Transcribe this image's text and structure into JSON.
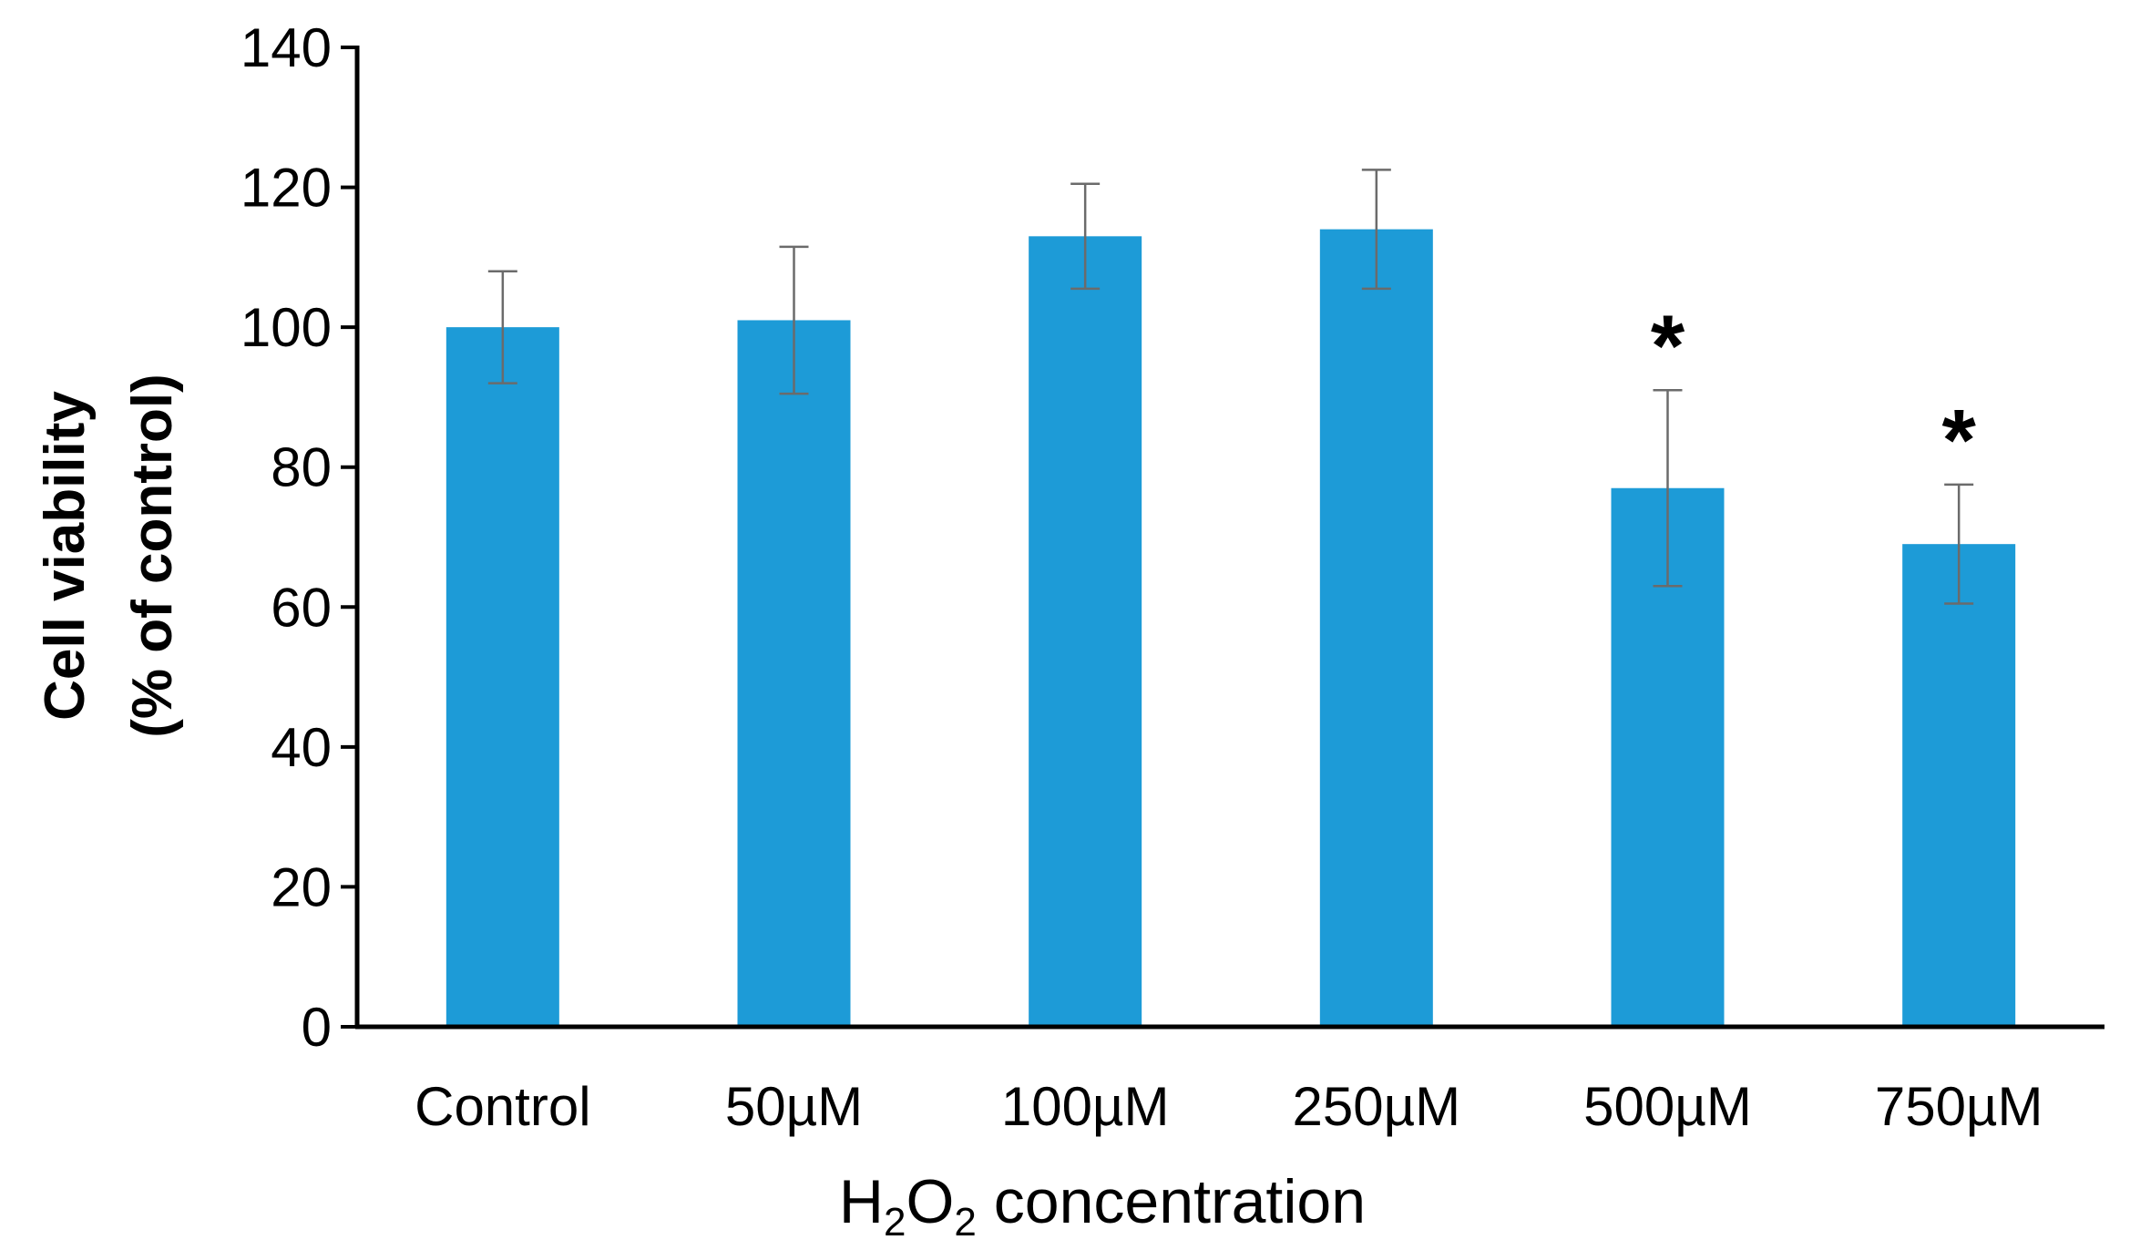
{
  "chart_data": {
    "type": "bar",
    "title": "",
    "categories": [
      "Control",
      "50µM",
      "100µM",
      "250µM",
      "500µM",
      "750µM"
    ],
    "values": [
      100,
      101,
      113,
      114,
      77,
      69
    ],
    "errors": [
      8,
      10.5,
      7.5,
      8.5,
      14,
      8.5
    ],
    "significance": [
      "",
      "",
      "",
      "",
      "*",
      "*"
    ],
    "ylim": [
      0,
      140
    ],
    "yticks": [
      0,
      20,
      40,
      60,
      80,
      100,
      120,
      140
    ],
    "ylabel_line1": "Cell viability",
    "ylabel_line2": "(% of control)",
    "xlabel_prefix": "H",
    "xlabel_sub1": "2",
    "xlabel_mid": "O",
    "xlabel_sub2": "2",
    "xlabel_suffix": " concentration",
    "bar_color": "#1d9bd7",
    "error_color": "#6b6b6b",
    "axis_color": "#000000",
    "grid": false
  }
}
